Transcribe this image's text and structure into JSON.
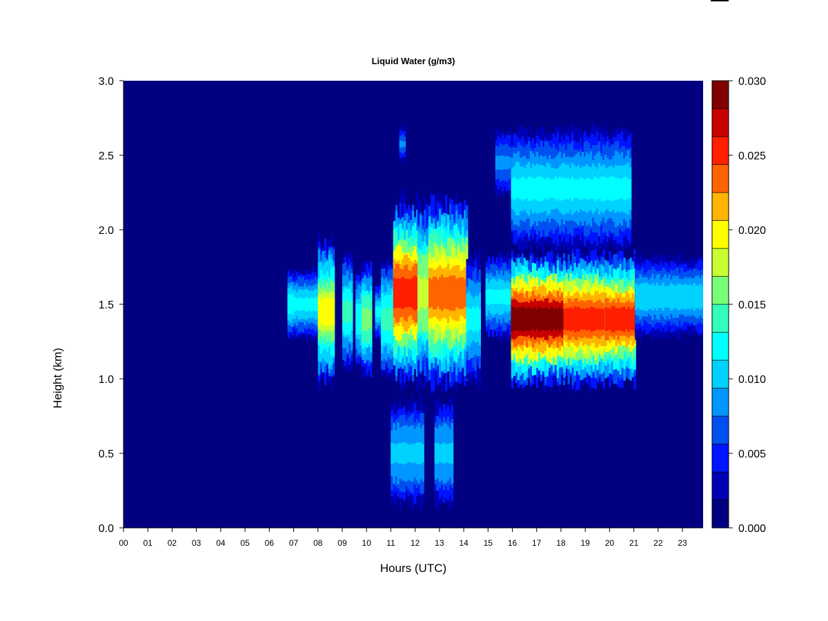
{
  "chart_data": {
    "type": "heatmap",
    "title": "Liquid Water (g/m3)",
    "xlabel": "Hours (UTC)",
    "ylabel": "Height (km)",
    "xlim": [
      0,
      23.85
    ],
    "ylim": [
      0,
      3.0
    ],
    "x_ticks": [
      "00",
      "01",
      "02",
      "03",
      "04",
      "05",
      "06",
      "07",
      "08",
      "09",
      "10",
      "11",
      "12",
      "13",
      "14",
      "15",
      "16",
      "17",
      "18",
      "19",
      "20",
      "21",
      "22",
      "23"
    ],
    "y_ticks": [
      "0.0",
      "0.5",
      "1.0",
      "1.5",
      "2.0",
      "2.5",
      "3.0"
    ],
    "colorbar": {
      "range": [
        0.0,
        0.03
      ],
      "ticks": [
        "0.000",
        "0.005",
        "0.010",
        "0.015",
        "0.020",
        "0.025",
        "0.030"
      ],
      "colors": [
        "#000080",
        "#0000b4",
        "#0014ff",
        "#0050f0",
        "#0096ff",
        "#00d2ff",
        "#00ffff",
        "#32ffbe",
        "#78ff78",
        "#c8ff32",
        "#ffff00",
        "#ffb400",
        "#ff6400",
        "#ff1e00",
        "#c80000",
        "#800000"
      ]
    },
    "background_value": 0.0,
    "features": [
      {
        "x_start": 6.75,
        "x_end": 7.0,
        "y_start": 1.25,
        "y_end": 1.75,
        "peak": 0.013
      },
      {
        "x_start": 7.0,
        "x_end": 7.95,
        "y_start": 1.25,
        "y_end": 1.75,
        "peak": 0.012
      },
      {
        "x_start": 8.0,
        "x_end": 8.6,
        "y_start": 0.95,
        "y_end": 1.95,
        "peak": 0.019
      },
      {
        "x_start": 9.0,
        "x_end": 9.35,
        "y_start": 1.05,
        "y_end": 1.85,
        "peak": 0.014
      },
      {
        "x_start": 9.55,
        "x_end": 9.8,
        "y_start": 1.05,
        "y_end": 1.75,
        "peak": 0.013
      },
      {
        "x_start": 9.8,
        "x_end": 10.2,
        "y_start": 1.0,
        "y_end": 1.8,
        "peak": 0.016
      },
      {
        "x_start": 10.35,
        "x_end": 10.6,
        "y_start": 1.25,
        "y_end": 1.65,
        "peak": 0.012
      },
      {
        "x_start": 10.6,
        "x_end": 11.1,
        "y_start": 0.95,
        "y_end": 1.85,
        "peak": 0.014
      },
      {
        "x_start": 11.1,
        "x_end": 12.1,
        "y_start": 0.95,
        "y_end": 2.2,
        "peak": 0.025
      },
      {
        "x_start": 12.1,
        "x_end": 12.55,
        "y_start": 0.95,
        "y_end": 2.2,
        "peak": 0.018
      },
      {
        "x_start": 12.55,
        "x_end": 14.1,
        "y_start": 0.95,
        "y_end": 2.2,
        "peak": 0.024
      },
      {
        "x_start": 14.1,
        "x_end": 14.65,
        "y_start": 0.95,
        "y_end": 1.85,
        "peak": 0.012
      },
      {
        "x_start": 14.9,
        "x_end": 15.85,
        "y_start": 1.25,
        "y_end": 1.85,
        "peak": 0.012
      },
      {
        "x_start": 15.3,
        "x_end": 15.95,
        "y_start": 2.2,
        "y_end": 2.7,
        "peak": 0.008
      },
      {
        "x_start": 15.95,
        "x_end": 18.1,
        "y_start": 0.95,
        "y_end": 1.85,
        "peak": 0.029
      },
      {
        "x_start": 15.95,
        "x_end": 20.85,
        "y_start": 1.85,
        "y_end": 2.7,
        "peak": 0.012
      },
      {
        "x_start": 18.1,
        "x_end": 19.8,
        "y_start": 0.95,
        "y_end": 1.85,
        "peak": 0.026
      },
      {
        "x_start": 19.8,
        "x_end": 21.05,
        "y_start": 0.95,
        "y_end": 1.85,
        "peak": 0.025
      },
      {
        "x_start": 21.05,
        "x_end": 23.85,
        "y_start": 1.25,
        "y_end": 1.85,
        "peak": 0.011
      },
      {
        "x_start": 11.35,
        "x_end": 11.6,
        "y_start": 2.45,
        "y_end": 2.7,
        "peak": 0.008
      },
      {
        "x_start": 11.0,
        "x_end": 12.3,
        "y_start": 0.1,
        "y_end": 0.9,
        "peak": 0.01
      },
      {
        "x_start": 12.8,
        "x_end": 13.5,
        "y_start": 0.1,
        "y_end": 0.9,
        "peak": 0.01
      }
    ]
  }
}
